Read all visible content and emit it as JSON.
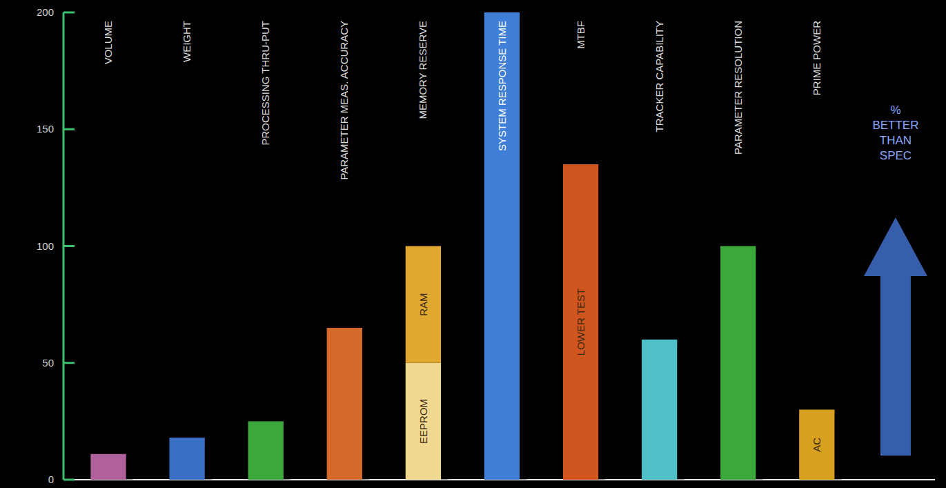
{
  "chart_data": {
    "type": "bar",
    "stacked": true,
    "categories": [
      "VOLUME",
      "WEIGHT",
      "PROCESSING THRU-PUT",
      "PARAMETER MEAS. ACCURACY",
      "MEMORY RESERVE",
      "SYSTEM RESPONSE TIME",
      "MTBF",
      "TRACKER CAPABILITY",
      "PARAMETER RESOLUTION",
      "PRIME POWER"
    ],
    "series": [
      {
        "values": [
          11,
          18,
          25,
          65,
          50,
          200,
          135,
          60,
          100,
          30
        ],
        "colors": [
          "#b0609a",
          "#3a6fc4",
          "#3aa83a",
          "#d4692a",
          "#f0d890",
          "#3f7fd8",
          "#d0551e",
          "#4fc0c8",
          "#3aa83a",
          "#d8a020"
        ],
        "labels": [
          null,
          null,
          null,
          null,
          "EEPROM",
          null,
          "LOWER TEST",
          null,
          null,
          "AC"
        ]
      },
      {
        "values": [
          null,
          null,
          null,
          null,
          50,
          null,
          null,
          null,
          null,
          null
        ],
        "colors": [
          null,
          null,
          null,
          null,
          "#e0a830",
          null,
          null,
          null,
          null,
          null
        ],
        "labels": [
          null,
          null,
          null,
          null,
          "RAM",
          null,
          null,
          null,
          null,
          null
        ]
      }
    ],
    "ylim": [
      0,
      200
    ],
    "yticks": [
      0,
      50,
      100,
      150,
      200
    ],
    "annotation": "% BETTER THAN SPEC"
  }
}
